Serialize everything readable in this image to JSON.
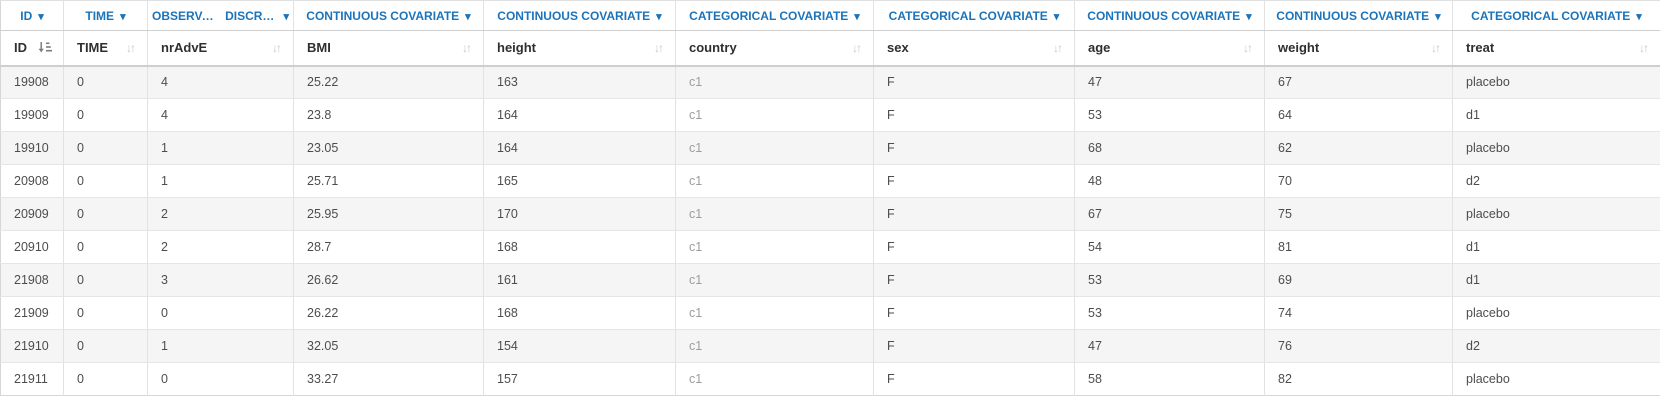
{
  "colors": {
    "accent_blue": "#1b74bb",
    "header_text": "#2f2f2f",
    "body_text": "#4d4d4d",
    "muted_country_text": "#9d9d9d",
    "stripe_row_bg": "#f5f5f5",
    "grid_border": "#e2e2e2"
  },
  "column_type_selectors": {
    "cells": [
      {
        "label": "ID"
      },
      {
        "label": "TIME"
      },
      {
        "label": "OBSERVATI…",
        "label2": "DISCRETE"
      },
      {
        "label": "CONTINUOUS COVARIATE"
      },
      {
        "label": "CONTINUOUS COVARIATE"
      },
      {
        "label": "CATEGORICAL COVARIATE"
      },
      {
        "label": "CATEGORICAL COVARIATE"
      },
      {
        "label": "CONTINUOUS COVARIATE"
      },
      {
        "label": "CONTINUOUS COVARIATE"
      },
      {
        "label": "CATEGORICAL COVARIATE"
      }
    ]
  },
  "table": {
    "columns": [
      {
        "key": "id",
        "label": "ID",
        "sort": "sorted"
      },
      {
        "key": "time",
        "label": "TIME",
        "sort": "unsorted"
      },
      {
        "key": "nradve",
        "label": "nrAdvE",
        "sort": "unsorted"
      },
      {
        "key": "bmi",
        "label": "BMI",
        "sort": "unsorted"
      },
      {
        "key": "height",
        "label": "height",
        "sort": "unsorted"
      },
      {
        "key": "country",
        "label": "country",
        "sort": "unsorted"
      },
      {
        "key": "sex",
        "label": "sex",
        "sort": "unsorted"
      },
      {
        "key": "age",
        "label": "age",
        "sort": "unsorted"
      },
      {
        "key": "weight",
        "label": "weight",
        "sort": "unsorted"
      },
      {
        "key": "treat",
        "label": "treat",
        "sort": "unsorted"
      }
    ],
    "rows": [
      {
        "id": "19908",
        "time": "0",
        "nradve": "4",
        "bmi": "25.22",
        "height": "163",
        "country": "c1",
        "sex": "F",
        "age": "47",
        "weight": "67",
        "treat": "placebo"
      },
      {
        "id": "19909",
        "time": "0",
        "nradve": "4",
        "bmi": "23.8",
        "height": "164",
        "country": "c1",
        "sex": "F",
        "age": "53",
        "weight": "64",
        "treat": "d1"
      },
      {
        "id": "19910",
        "time": "0",
        "nradve": "1",
        "bmi": "23.05",
        "height": "164",
        "country": "c1",
        "sex": "F",
        "age": "68",
        "weight": "62",
        "treat": "placebo"
      },
      {
        "id": "20908",
        "time": "0",
        "nradve": "1",
        "bmi": "25.71",
        "height": "165",
        "country": "c1",
        "sex": "F",
        "age": "48",
        "weight": "70",
        "treat": "d2"
      },
      {
        "id": "20909",
        "time": "0",
        "nradve": "2",
        "bmi": "25.95",
        "height": "170",
        "country": "c1",
        "sex": "F",
        "age": "67",
        "weight": "75",
        "treat": "placebo"
      },
      {
        "id": "20910",
        "time": "0",
        "nradve": "2",
        "bmi": "28.7",
        "height": "168",
        "country": "c1",
        "sex": "F",
        "age": "54",
        "weight": "81",
        "treat": "d1"
      },
      {
        "id": "21908",
        "time": "0",
        "nradve": "3",
        "bmi": "26.62",
        "height": "161",
        "country": "c1",
        "sex": "F",
        "age": "53",
        "weight": "69",
        "treat": "d1"
      },
      {
        "id": "21909",
        "time": "0",
        "nradve": "0",
        "bmi": "26.22",
        "height": "168",
        "country": "c1",
        "sex": "F",
        "age": "53",
        "weight": "74",
        "treat": "placebo"
      },
      {
        "id": "21910",
        "time": "0",
        "nradve": "1",
        "bmi": "32.05",
        "height": "154",
        "country": "c1",
        "sex": "F",
        "age": "47",
        "weight": "76",
        "treat": "d2"
      },
      {
        "id": "21911",
        "time": "0",
        "nradve": "0",
        "bmi": "33.27",
        "height": "157",
        "country": "c1",
        "sex": "F",
        "age": "58",
        "weight": "82",
        "treat": "placebo"
      }
    ]
  }
}
